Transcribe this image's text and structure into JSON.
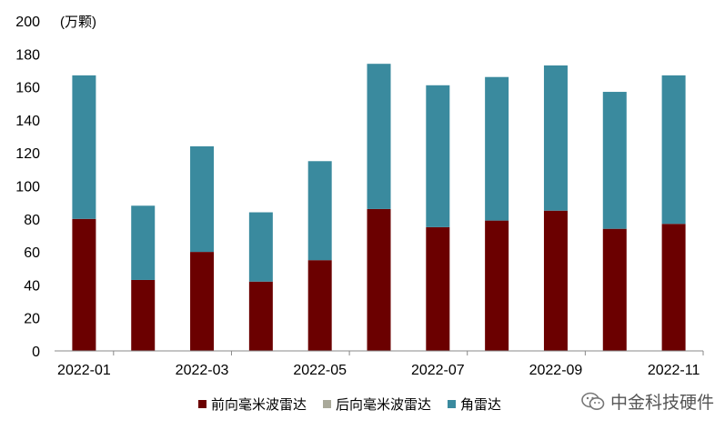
{
  "chart_data": {
    "type": "bar",
    "stacked": true,
    "unit_label": "(万颗)",
    "ylim": [
      0,
      200
    ],
    "yticks": [
      0,
      20,
      40,
      60,
      80,
      100,
      120,
      140,
      160,
      180,
      200
    ],
    "categories": [
      "2022-01",
      "2022-02",
      "2022-03",
      "2022-04",
      "2022-05",
      "2022-06",
      "2022-07",
      "2022-08",
      "2022-09",
      "2022-10",
      "2022-11"
    ],
    "x_tick_labels": [
      "2022-01",
      "",
      "2022-03",
      "",
      "2022-05",
      "",
      "2022-07",
      "",
      "2022-09",
      "",
      "2022-11"
    ],
    "series": [
      {
        "name": "前向毫米波雷达",
        "color": "#6b0000",
        "values": [
          80,
          43,
          60,
          42,
          55,
          86,
          75,
          79,
          85,
          74,
          77
        ]
      },
      {
        "name": "后向毫米波雷达",
        "color": "#a9a99a",
        "values": [
          0,
          0,
          0,
          0,
          0,
          0,
          0,
          0,
          0,
          0,
          0
        ]
      },
      {
        "name": "角雷达",
        "color": "#3a8a9e",
        "values": [
          87,
          45,
          64,
          42,
          60,
          88,
          86,
          87,
          88,
          83,
          90
        ]
      }
    ],
    "legend_position": "bottom",
    "grid": false
  },
  "watermark": {
    "text": "中金科技硬件",
    "icon": "wechat-icon"
  }
}
